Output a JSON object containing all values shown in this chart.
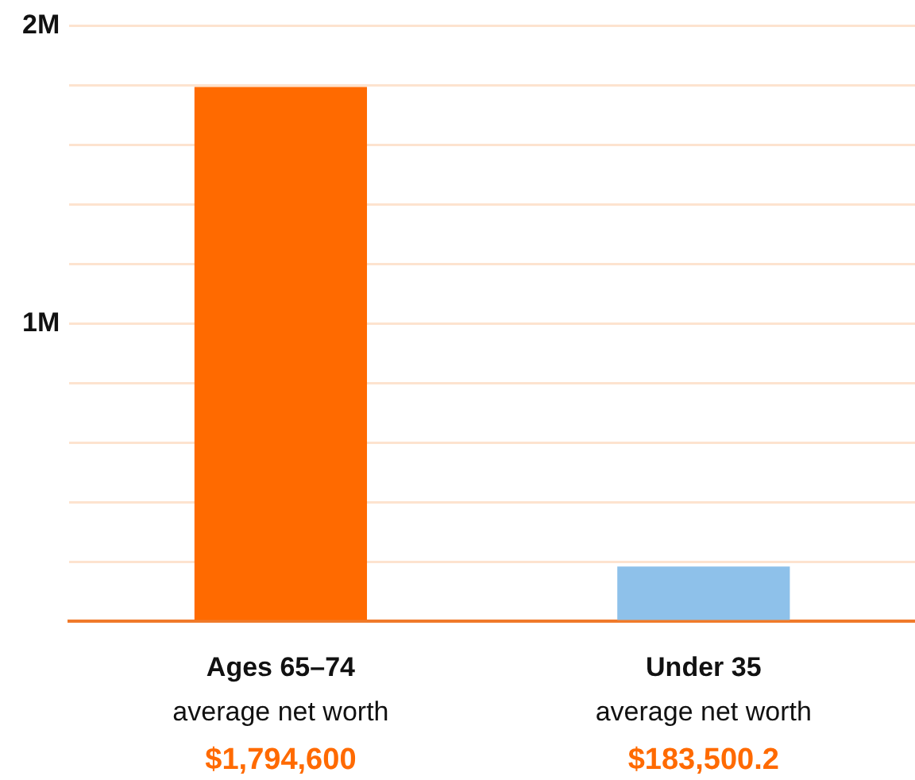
{
  "chart_data": {
    "type": "bar",
    "categories": [
      "Ages 65–74\naverage net worth",
      "Under 35\naverage net worth"
    ],
    "values": [
      1794600,
      183500.2
    ],
    "colors": [
      "#ff6a00",
      "#8ec1ea"
    ],
    "value_labels": [
      "$1,794,600",
      "$183,500.2"
    ],
    "ylim": [
      0,
      2000000
    ],
    "yticks": [
      {
        "value": 0,
        "label": null
      },
      {
        "value": 200000,
        "label": null
      },
      {
        "value": 400000,
        "label": null
      },
      {
        "value": 600000,
        "label": null
      },
      {
        "value": 800000,
        "label": null
      },
      {
        "value": 1000000,
        "label": "1M"
      },
      {
        "value": 1200000,
        "label": null
      },
      {
        "value": 1400000,
        "label": null
      },
      {
        "value": 1600000,
        "label": null
      },
      {
        "value": 1800000,
        "label": null
      },
      {
        "value": 2000000,
        "label": "2M"
      }
    ],
    "grid": "y"
  }
}
